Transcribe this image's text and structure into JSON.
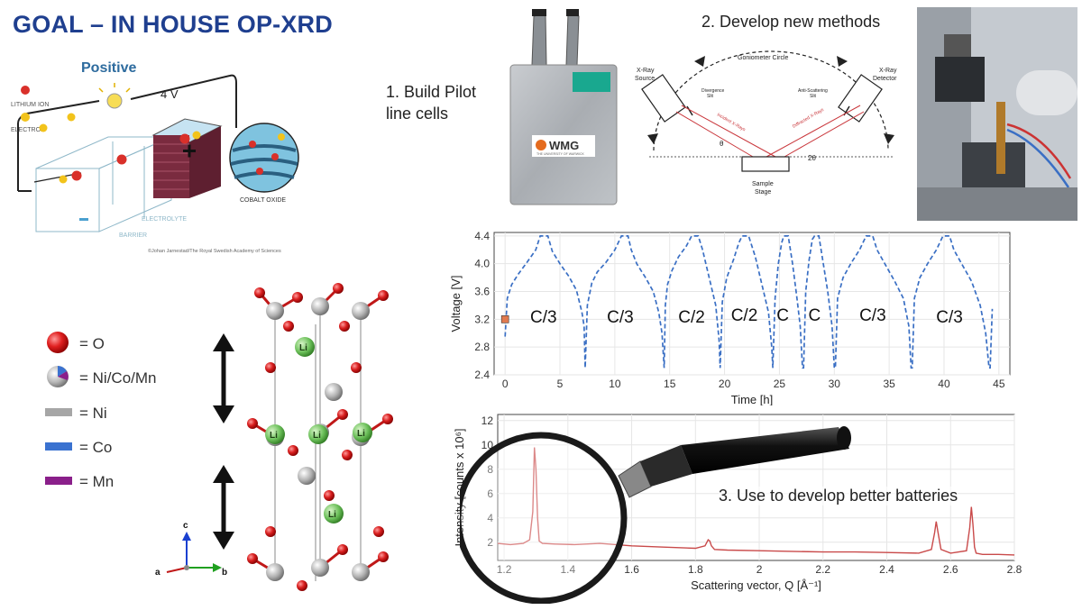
{
  "slide": {
    "title": "GOAL – IN HOUSE OP-XRD",
    "step1": "1. Build Pilot line cells",
    "step1_line1": "1. Build Pilot",
    "step1_line2": "line cells",
    "step2": "2. Develop new methods",
    "step3": "3. Use to develop better batteries"
  },
  "battery_diagram": {
    "heading": "Positive",
    "voltage": "4 V",
    "legend_ion": "LITHIUM ION",
    "legend_electron": "ELECTRON",
    "electrolyte": "ELECTROLYTE",
    "barrier": "BARRIER",
    "cobalt_oxide": "COBALT OXIDE",
    "credit": "©Johan Jarnestad/The Royal Swedish Academy of Sciences",
    "colors": {
      "ion": "#d9302a",
      "electron": "#f2c31b",
      "cathode": "#7a2b3f"
    }
  },
  "pouch_cell": {
    "brand": "WMG",
    "tagline": "THE UNIVERSITY OF WARWICK"
  },
  "xrd_schematic": {
    "goniometer": "Goniometer Circle",
    "source": "X-Ray\nSource",
    "source_l1": "X-Ray",
    "source_l2": "Source",
    "detector_l1": "X-Ray",
    "detector_l2": "Detector",
    "div_slit_l1": "Divergence",
    "div_slit_l2": "Slit",
    "anti_slit_l1": "Anti-Scattering",
    "anti_slit_l2": "Slit",
    "incident": "Incident X-Rays",
    "diffracted": "Diffracted X-Rays",
    "theta": "θ",
    "two_theta": "2θ",
    "stage_l1": "Sample",
    "stage_l2": "Stage"
  },
  "crystal_legend": {
    "items": [
      {
        "label": "= O",
        "color": "#d81e1e",
        "kind": "sphere"
      },
      {
        "label": "= Ni/Co/Mn",
        "color": "#b0b0b0",
        "kind": "tri-sphere"
      },
      {
        "label": "= Ni",
        "color": "#a6a6a6",
        "kind": "bar"
      },
      {
        "label": "= Co",
        "color": "#3a72d0",
        "kind": "bar"
      },
      {
        "label": "= Mn",
        "color": "#8a1f8a",
        "kind": "bar"
      }
    ],
    "li_label": "Li",
    "axis_c": "c",
    "axis_a": "a",
    "axis_b": "b"
  },
  "chart_data": [
    {
      "type": "line",
      "xlabel": "Time [h]",
      "ylabel": "Voltage [V]",
      "xlim": [
        -1,
        46
      ],
      "ylim": [
        2.4,
        4.45
      ],
      "xticks": [
        0,
        5,
        10,
        15,
        20,
        25,
        30,
        35,
        40,
        45
      ],
      "yticks": [
        2.4,
        2.8,
        3.2,
        3.6,
        4.0,
        4.4
      ],
      "grid": true,
      "series": [
        {
          "x": [
            0,
            0.2,
            0.6,
            1.2,
            2.0,
            2.8,
            3.2,
            3.6,
            3.9,
            4.3,
            5.0,
            5.8,
            6.5,
            7.0,
            7.2,
            7.3,
            7.5,
            7.9,
            8.4,
            9.2,
            10.0,
            10.6,
            10.9,
            11.2,
            11.5,
            12.0,
            12.8,
            13.5,
            14.0,
            14.3,
            14.5,
            14.6,
            14.8,
            15.2,
            15.8,
            16.5,
            17.0,
            17.3,
            17.6,
            18.0,
            18.6,
            19.2,
            19.5,
            19.6,
            19.8,
            20.2,
            20.8,
            21.3,
            21.6,
            21.9,
            22.2,
            22.8,
            23.4,
            24.0,
            24.3,
            24.4,
            24.6,
            24.9,
            25.2,
            25.4,
            25.6,
            25.8,
            26.2,
            26.6,
            26.9,
            27.1,
            27.2,
            27.4,
            27.7,
            28.0,
            28.2,
            28.4,
            28.6,
            29.0,
            29.4,
            29.8,
            30.0,
            30.1,
            30.3,
            30.8,
            31.5,
            32.3,
            32.9,
            33.2,
            33.5,
            33.9,
            34.6,
            35.5,
            36.3,
            36.8,
            37.0,
            37.1,
            37.3,
            37.8,
            38.5,
            39.3,
            39.9,
            40.2,
            40.5,
            40.9,
            41.6,
            42.5,
            43.3,
            43.8,
            44.1,
            44.2,
            44.4
          ],
          "y": [
            2.95,
            3.5,
            3.7,
            3.85,
            4.02,
            4.2,
            4.4,
            4.4,
            4.4,
            4.18,
            4.0,
            3.82,
            3.62,
            3.3,
            3.1,
            2.5,
            3.4,
            3.72,
            3.88,
            4.02,
            4.2,
            4.4,
            4.4,
            4.4,
            4.2,
            4.0,
            3.8,
            3.6,
            3.3,
            3.0,
            2.5,
            3.4,
            3.7,
            3.9,
            4.1,
            4.25,
            4.4,
            4.4,
            4.4,
            4.2,
            3.8,
            3.4,
            2.9,
            2.5,
            3.45,
            3.8,
            4.05,
            4.3,
            4.4,
            4.4,
            4.4,
            4.1,
            3.7,
            3.3,
            2.8,
            2.5,
            3.5,
            4.0,
            4.3,
            4.4,
            4.4,
            4.4,
            4.0,
            3.5,
            3.1,
            2.5,
            2.5,
            3.6,
            4.05,
            4.35,
            4.4,
            4.4,
            4.4,
            4.0,
            3.6,
            3.1,
            2.5,
            2.5,
            3.5,
            3.8,
            4.0,
            4.2,
            4.4,
            4.4,
            4.4,
            4.2,
            4.0,
            3.75,
            3.5,
            3.1,
            2.5,
            2.5,
            3.5,
            3.8,
            4.0,
            4.2,
            4.4,
            4.4,
            4.4,
            4.2,
            4.0,
            3.75,
            3.4,
            3.0,
            2.5,
            2.5,
            3.35
          ],
          "color": "#3a6fc4"
        }
      ],
      "marker": {
        "x": 0,
        "y": 3.2,
        "color": "#e07a50"
      },
      "annotations": [
        {
          "text": "C/3",
          "x": 3.5,
          "y": 3.15
        },
        {
          "text": "C/3",
          "x": 10.5,
          "y": 3.15
        },
        {
          "text": "C/2",
          "x": 17.0,
          "y": 3.15
        },
        {
          "text": "C/2",
          "x": 21.8,
          "y": 3.18
        },
        {
          "text": "C",
          "x": 25.3,
          "y": 3.18
        },
        {
          "text": "C",
          "x": 28.2,
          "y": 3.18
        },
        {
          "text": "C/3",
          "x": 33.5,
          "y": 3.18
        },
        {
          "text": "C/3",
          "x": 40.5,
          "y": 3.15
        }
      ]
    },
    {
      "type": "line",
      "xlabel": "Scattering vector, Q [Å⁻¹]",
      "ylabel": "Intensity [counts x 10⁶]",
      "xlim": [
        1.18,
        2.8
      ],
      "ylim": [
        0.5,
        12.5
      ],
      "xticks": [
        1.2,
        1.4,
        1.6,
        1.8,
        2.0,
        2.2,
        2.4,
        2.6,
        2.8
      ],
      "yticks": [
        2,
        4,
        6,
        8,
        10,
        12
      ],
      "grid": true,
      "series": [
        {
          "x": [
            1.18,
            1.22,
            1.26,
            1.28,
            1.29,
            1.295,
            1.3,
            1.305,
            1.31,
            1.32,
            1.36,
            1.42,
            1.5,
            1.6,
            1.7,
            1.8,
            1.83,
            1.84,
            1.845,
            1.85,
            1.86,
            1.9,
            2.0,
            2.1,
            2.2,
            2.3,
            2.4,
            2.5,
            2.54,
            2.55,
            2.555,
            2.56,
            2.57,
            2.6,
            2.65,
            2.66,
            2.665,
            2.67,
            2.675,
            2.68,
            2.7,
            2.75,
            2.8
          ],
          "y": [
            1.9,
            1.8,
            1.9,
            2.2,
            4.5,
            9.8,
            8.0,
            4.0,
            2.1,
            1.9,
            1.85,
            1.8,
            1.9,
            1.7,
            1.6,
            1.5,
            1.7,
            2.2,
            2.1,
            1.7,
            1.4,
            1.35,
            1.3,
            1.25,
            1.2,
            1.2,
            1.15,
            1.1,
            1.4,
            2.8,
            3.7,
            2.9,
            1.4,
            1.1,
            1.3,
            3.2,
            4.9,
            3.5,
            1.6,
            1.1,
            1.0,
            1.0,
            0.95
          ],
          "color": "#c94a4a"
        }
      ]
    }
  ]
}
